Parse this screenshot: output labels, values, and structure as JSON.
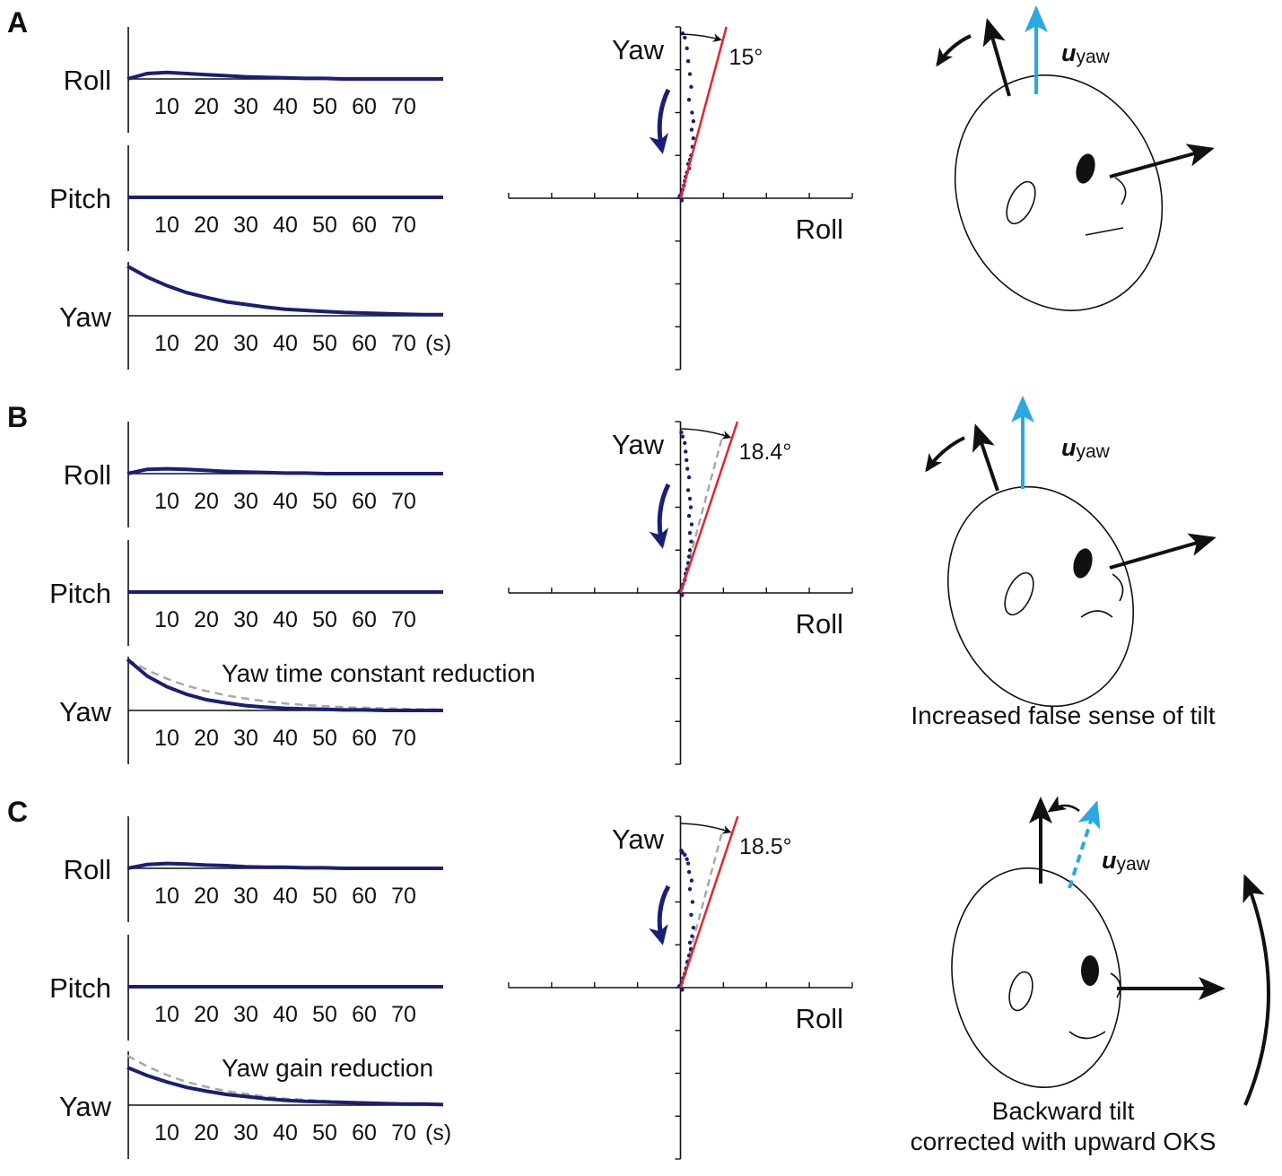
{
  "panels": [
    {
      "letter": "A",
      "vector": {
        "symbol": "u",
        "subscript": "yaw"
      }
    },
    {
      "letter": "B",
      "vector": {
        "symbol": "u",
        "subscript": "yaw"
      },
      "caption": [
        "Increased false sense of tilt"
      ]
    },
    {
      "letter": "C",
      "vector": {
        "symbol": "u",
        "subscript": "yaw"
      },
      "caption": [
        "Backward tilt",
        "corrected with upward OKS"
      ]
    }
  ],
  "chart_data": [
    {
      "type": "line",
      "ylabel": "Roll",
      "x": [
        0,
        5,
        10,
        15,
        20,
        25,
        30,
        35,
        40,
        45,
        50,
        55,
        60,
        65,
        70,
        75,
        80
      ],
      "xlim": [
        0,
        80
      ],
      "xticks": [
        10,
        20,
        30,
        40,
        50,
        60,
        70
      ],
      "ylim": [
        0,
        1
      ],
      "series": [
        {
          "color": "#1b1f73",
          "values": [
            0,
            0.1,
            0.12,
            0.1,
            0.08,
            0.06,
            0.04,
            0.03,
            0.02,
            0.01,
            0.01,
            0,
            0,
            0,
            0,
            0,
            0
          ]
        }
      ]
    },
    {
      "type": "line",
      "ylabel": "Pitch",
      "x": [
        0,
        5,
        10,
        15,
        20,
        25,
        30,
        35,
        40,
        45,
        50,
        55,
        60,
        65,
        70,
        75,
        80
      ],
      "xlim": [
        0,
        80
      ],
      "xticks": [
        10,
        20,
        30,
        40,
        50,
        60,
        70
      ],
      "ylim": [
        0,
        1
      ],
      "series": [
        {
          "color": "#1b1f73",
          "values": [
            0,
            0,
            0,
            0,
            0,
            0,
            0,
            0,
            0,
            0,
            0,
            0,
            0,
            0,
            0,
            0,
            0
          ]
        }
      ]
    },
    {
      "type": "line",
      "ylabel": "Yaw",
      "xunit": "(s)",
      "x": [
        0,
        5,
        10,
        15,
        20,
        25,
        30,
        35,
        40,
        45,
        50,
        55,
        60,
        65,
        70,
        75,
        80
      ],
      "xlim": [
        0,
        80
      ],
      "xticks": [
        10,
        20,
        30,
        40,
        50,
        60,
        70
      ],
      "ylim": [
        0,
        1
      ],
      "series": [
        {
          "color": "#1b1f73",
          "values": [
            0.92,
            0.72,
            0.56,
            0.43,
            0.34,
            0.26,
            0.21,
            0.16,
            0.12,
            0.1,
            0.08,
            0.06,
            0.05,
            0.04,
            0.03,
            0.02,
            0.02
          ]
        }
      ]
    },
    {
      "type": "scatter",
      "ylabel": "Yaw",
      "xlabel": "Roll",
      "xlim": [
        -4,
        4
      ],
      "ylim": [
        -4,
        4
      ],
      "xticks": [
        -4,
        -3,
        -2,
        -1,
        0,
        1,
        2,
        3,
        4
      ],
      "yticks": [
        -4,
        -3,
        -2,
        -1,
        0,
        1,
        2,
        3,
        4
      ],
      "fit_angle": 15,
      "fit_angle_label": "15°",
      "fit_color": "#e3262b",
      "x": [
        0,
        0.02,
        0.05,
        0.08,
        0.1,
        0.12,
        0.15,
        0.2,
        0.18,
        0.22,
        0.25,
        0.28,
        0.3,
        0.26,
        0.3,
        0.27,
        0.2,
        0.25,
        0.22,
        0.18,
        0.15,
        0.1,
        0.05,
        -0.02,
        0.03
      ],
      "series": [
        {
          "color": "#1b1f73",
          "values": [
            0.05,
            0.1,
            0.2,
            0.3,
            0.4,
            0.5,
            0.6,
            0.7,
            0.8,
            0.9,
            1.0,
            1.2,
            1.4,
            1.6,
            1.8,
            2.0,
            2.3,
            2.6,
            2.9,
            3.2,
            3.5,
            3.75,
            3.85,
            0.05,
            -0.05
          ]
        }
      ]
    },
    {
      "type": "line",
      "ylabel": "Roll",
      "x": [
        0,
        5,
        10,
        15,
        20,
        25,
        30,
        35,
        40,
        45,
        50,
        55,
        60,
        65,
        70,
        75,
        80
      ],
      "xlim": [
        0,
        80
      ],
      "xticks": [
        10,
        20,
        30,
        40,
        50,
        60,
        70
      ],
      "ylim": [
        0,
        1
      ],
      "series": [
        {
          "color": "#1b1f73",
          "values": [
            0,
            0.08,
            0.09,
            0.08,
            0.06,
            0.04,
            0.03,
            0.02,
            0.01,
            0.01,
            0,
            0,
            0,
            0,
            0,
            0,
            0
          ]
        }
      ]
    },
    {
      "type": "line",
      "ylabel": "Pitch",
      "x": [
        0,
        5,
        10,
        15,
        20,
        25,
        30,
        35,
        40,
        45,
        50,
        55,
        60,
        65,
        70,
        75,
        80
      ],
      "xlim": [
        0,
        80
      ],
      "xticks": [
        10,
        20,
        30,
        40,
        50,
        60,
        70
      ],
      "ylim": [
        0,
        1
      ],
      "series": [
        {
          "color": "#1b1f73",
          "values": [
            0,
            0,
            0,
            0,
            0,
            0,
            0,
            0,
            0,
            0,
            0,
            0,
            0,
            0,
            0,
            0,
            0
          ]
        }
      ]
    },
    {
      "type": "line",
      "ylabel": "Yaw",
      "annotation": "Yaw time constant reduction",
      "x": [
        0,
        5,
        10,
        15,
        20,
        25,
        30,
        35,
        40,
        45,
        50,
        55,
        60,
        65,
        70,
        75,
        80
      ],
      "xlim": [
        0,
        80
      ],
      "xticks": [
        10,
        20,
        30,
        40,
        50,
        60,
        70
      ],
      "ylim": [
        0,
        1
      ],
      "series": [
        {
          "color": "#a8a8a8",
          "dash": true,
          "values": [
            0.95,
            0.75,
            0.59,
            0.46,
            0.36,
            0.28,
            0.22,
            0.17,
            0.13,
            0.1,
            0.08,
            0.06,
            0.05,
            0.04,
            0.03,
            0.02,
            0.02
          ]
        },
        {
          "color": "#1b1f73",
          "values": [
            0.95,
            0.64,
            0.44,
            0.3,
            0.2,
            0.14,
            0.09,
            0.06,
            0.04,
            0.03,
            0.02,
            0.01,
            0.01,
            0,
            0,
            0,
            0
          ]
        }
      ]
    },
    {
      "type": "scatter",
      "ylabel": "Yaw",
      "xlabel": "Roll",
      "xlim": [
        -4,
        4
      ],
      "ylim": [
        -4,
        4
      ],
      "xticks": [
        -4,
        -3,
        -2,
        -1,
        0,
        1,
        2,
        3,
        4
      ],
      "yticks": [
        -4,
        -3,
        -2,
        -1,
        0,
        1,
        2,
        3,
        4
      ],
      "fit_angle": 18.4,
      "fit_angle_label": "18.4°",
      "fit_color": "#e3262b",
      "reference_angle": 15,
      "reference_color": "#a8a8a8",
      "x": [
        0,
        0.03,
        0.06,
        0.1,
        0.12,
        0.15,
        0.18,
        0.2,
        0.22,
        0.25,
        0.22,
        0.26,
        0.2,
        0.24,
        0.22,
        0.18,
        0.2,
        0.16,
        0.14,
        0.12,
        0.1,
        0.05,
        0.02,
        -0.03,
        0.04
      ],
      "series": [
        {
          "color": "#1b1f73",
          "values": [
            0.05,
            0.12,
            0.2,
            0.3,
            0.45,
            0.55,
            0.7,
            0.85,
            1.0,
            1.2,
            1.4,
            1.6,
            1.8,
            2.0,
            2.2,
            2.4,
            2.7,
            2.9,
            3.1,
            3.3,
            3.5,
            3.65,
            3.75,
            0.02,
            -0.05
          ]
        }
      ]
    },
    {
      "type": "line",
      "ylabel": "Roll",
      "x": [
        0,
        5,
        10,
        15,
        20,
        25,
        30,
        35,
        40,
        45,
        50,
        55,
        60,
        65,
        70,
        75,
        80
      ],
      "xlim": [
        0,
        80
      ],
      "xticks": [
        10,
        20,
        30,
        40,
        50,
        60,
        70
      ],
      "ylim": [
        0,
        1
      ],
      "series": [
        {
          "color": "#1b1f73",
          "values": [
            0,
            0.07,
            0.09,
            0.08,
            0.06,
            0.05,
            0.03,
            0.02,
            0.02,
            0.01,
            0.01,
            0,
            0,
            0,
            0,
            0,
            0
          ]
        }
      ]
    },
    {
      "type": "line",
      "ylabel": "Pitch",
      "x": [
        0,
        5,
        10,
        15,
        20,
        25,
        30,
        35,
        40,
        45,
        50,
        55,
        60,
        65,
        70,
        75,
        80
      ],
      "xlim": [
        0,
        80
      ],
      "xticks": [
        10,
        20,
        30,
        40,
        50,
        60,
        70
      ],
      "ylim": [
        0,
        1
      ],
      "series": [
        {
          "color": "#1b1f73",
          "values": [
            0,
            0,
            0,
            0,
            0,
            0,
            0,
            0,
            0,
            0,
            0,
            0,
            0,
            0,
            0,
            0,
            0
          ]
        }
      ]
    },
    {
      "type": "line",
      "ylabel": "Yaw",
      "xunit": "(s)",
      "annotation": "Yaw gain reduction",
      "x": [
        0,
        5,
        10,
        15,
        20,
        25,
        30,
        35,
        40,
        45,
        50,
        55,
        60,
        65,
        70,
        75,
        80
      ],
      "xlim": [
        0,
        80
      ],
      "xticks": [
        10,
        20,
        30,
        40,
        50,
        60,
        70
      ],
      "ylim": [
        0,
        1
      ],
      "series": [
        {
          "color": "#a8a8a8",
          "dash": true,
          "values": [
            0.92,
            0.72,
            0.56,
            0.43,
            0.34,
            0.26,
            0.21,
            0.16,
            0.12,
            0.1,
            0.08,
            0.06,
            0.05,
            0.04,
            0.03,
            0.02,
            0.02
          ]
        },
        {
          "color": "#1b1f73",
          "values": [
            0.7,
            0.55,
            0.43,
            0.33,
            0.26,
            0.2,
            0.16,
            0.12,
            0.09,
            0.07,
            0.06,
            0.05,
            0.04,
            0.03,
            0.02,
            0.02,
            0.01
          ]
        }
      ]
    },
    {
      "type": "scatter",
      "ylabel": "Yaw",
      "xlabel": "Roll",
      "xlim": [
        -4,
        4
      ],
      "ylim": [
        -4,
        4
      ],
      "xticks": [
        -4,
        -3,
        -2,
        -1,
        0,
        1,
        2,
        3,
        4
      ],
      "yticks": [
        -4,
        -3,
        -2,
        -1,
        0,
        1,
        2,
        3,
        4
      ],
      "fit_angle": 18.5,
      "fit_angle_label": "18.5°",
      "fit_color": "#e3262b",
      "reference_angle": 15,
      "reference_color": "#a8a8a8",
      "x": [
        0,
        0.03,
        0.06,
        0.1,
        0.13,
        0.16,
        0.2,
        0.24,
        0.22,
        0.27,
        0.3,
        0.25,
        0.28,
        0.22,
        0.26,
        0.2,
        0.18,
        0.15,
        0.1,
        0.05,
        0.02,
        -0.03,
        0.04
      ],
      "series": [
        {
          "color": "#1b1f73",
          "values": [
            0.05,
            0.12,
            0.22,
            0.32,
            0.45,
            0.6,
            0.75,
            0.9,
            1.05,
            1.2,
            1.4,
            1.7,
            2.0,
            2.3,
            2.5,
            2.7,
            2.9,
            3.0,
            3.1,
            3.15,
            3.2,
            0.03,
            -0.05
          ]
        }
      ]
    }
  ]
}
